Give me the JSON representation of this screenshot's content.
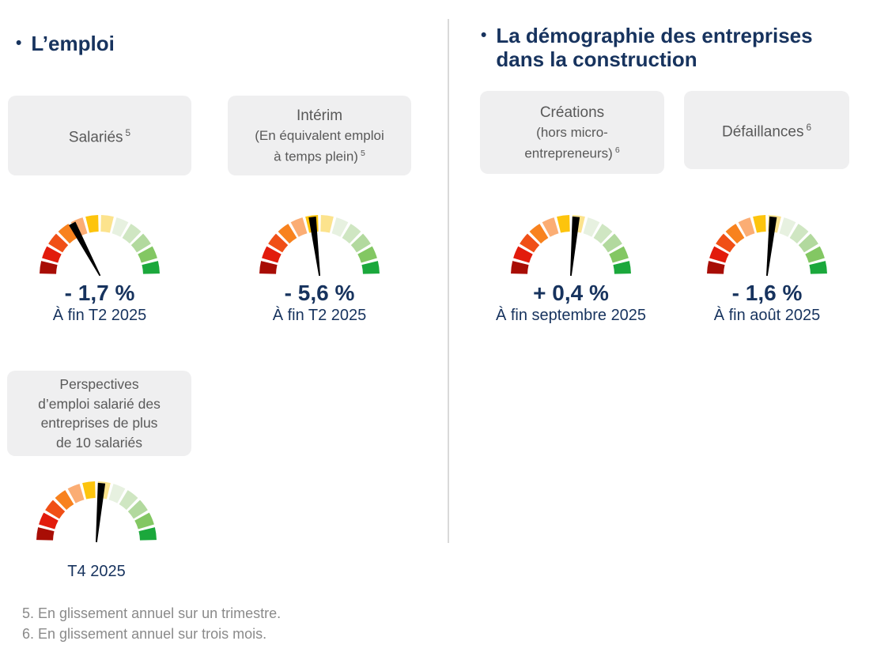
{
  "headers": {
    "left": {
      "bullet": "•",
      "title": "L’emploi"
    },
    "right": {
      "bullet": "•",
      "line1": "La démographie des entreprises",
      "line2": "dans la construction"
    }
  },
  "chart_data": [
    {
      "type": "gauge",
      "id": "salaries",
      "card_line1": "Salariés",
      "sup": "5",
      "value": "- 1,7 %",
      "value_pct": -1.7,
      "caption": "À fin T2 2025",
      "needle_angle_deg": -28,
      "scale": "180° semicircle, red (left/negative) to green (right/positive), 12 segments"
    },
    {
      "type": "gauge",
      "id": "interim",
      "card_line1": "Intérim",
      "card_line2": "(En équivalent emploi",
      "card_line3": "à temps plein)",
      "sup": "5",
      "value": "- 5,6 %",
      "value_pct": -5.6,
      "caption": "À fin T2 2025",
      "needle_angle_deg": -7,
      "scale": "180° semicircle, red (left/negative) to green (right/positive), 12 segments"
    },
    {
      "type": "gauge",
      "id": "perspectives",
      "card_line1": "Perspectives",
      "card_line2": "d’emploi salarié des",
      "card_line3": "entreprises de plus",
      "card_line4": "de 10 salariés",
      "caption": "T4 2025",
      "needle_angle_deg": 5,
      "scale": "180° semicircle, red (left/negative) to green (right/positive), 12 segments"
    },
    {
      "type": "gauge",
      "id": "creations",
      "card_line1": "Créations",
      "card_line2": "(hors micro-",
      "card_line3": "entrepreneurs)",
      "sup": "6",
      "value": "+ 0,4 %",
      "value_pct": 0.4,
      "caption": "À fin septembre 2025",
      "needle_angle_deg": 5,
      "scale": "180° semicircle, red (left/negative) to green (right/positive), 12 segments"
    },
    {
      "type": "gauge",
      "id": "defaillances",
      "card_line1": "Défaillances",
      "sup": "6",
      "value": "- 1,6 %",
      "value_pct": -1.6,
      "caption": "À fin août 2025",
      "needle_angle_deg": 6,
      "scale": "180° semicircle, red (left/negative) to green (right/positive), 12 segments"
    }
  ],
  "gauge_style": {
    "segments": 12,
    "arc_deg": 180,
    "palette": [
      "#A80D05",
      "#E21B0C",
      "#F04F16",
      "#F8821E",
      "#FBAD74",
      "#FDC40D",
      "#FCE38D",
      "#E7F1E0",
      "#CFE6C2",
      "#B2D99E",
      "#83C763",
      "#1BA83C"
    ],
    "needle_color": "#000000"
  },
  "footnotes": [
    "5. En glissement annuel sur un trimestre.",
    "6. En glissement annuel sur trois mois."
  ],
  "colors": {
    "navy": "#17335e",
    "card_bg": "#efeff0",
    "card_text": "#595959",
    "footnote_text": "#8a8a8a",
    "divider": "#d9d9d9"
  }
}
